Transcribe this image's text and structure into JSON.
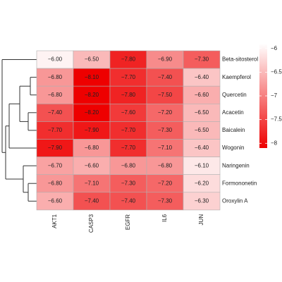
{
  "chart_data": {
    "type": "heatmap",
    "rows": [
      "Beta-sitosterol",
      "Kaempferol",
      "Quercetin",
      "Acacetin",
      "Baicalein",
      "Wogonin",
      "Naringenin",
      "Formononetin",
      "Oroxylin A"
    ],
    "columns": [
      "AKT1",
      "CASP3",
      "EGFR",
      "IL6",
      "JUN"
    ],
    "values": [
      [
        -6.0,
        -6.5,
        -7.8,
        -6.9,
        -7.3
      ],
      [
        -6.8,
        -8.1,
        -7.7,
        -7.4,
        -6.4
      ],
      [
        -6.8,
        -8.2,
        -7.8,
        -7.5,
        -6.6
      ],
      [
        -7.4,
        -8.2,
        -7.6,
        -7.2,
        -6.5
      ],
      [
        -7.7,
        -7.9,
        -7.7,
        -7.3,
        -6.5
      ],
      [
        -7.9,
        -6.8,
        -7.7,
        -7.1,
        -6.4
      ],
      [
        -6.7,
        -6.6,
        -6.8,
        -6.8,
        -6.1
      ],
      [
        -6.8,
        -7.1,
        -7.3,
        -7.2,
        -6.2
      ],
      [
        -6.6,
        -7.4,
        -7.4,
        -7.3,
        -6.3
      ]
    ],
    "value_labels": [
      [
        "−6.00",
        "−6.50",
        "−7.80",
        "−6.90",
        "−7.30"
      ],
      [
        "−6.80",
        "−8.10",
        "−7.70",
        "−7.40",
        "−6.40"
      ],
      [
        "−6.80",
        "−8.20",
        "−7.80",
        "−7.50",
        "−6.60"
      ],
      [
        "−7.40",
        "−8.20",
        "−7.60",
        "−7.20",
        "−6.50"
      ],
      [
        "−7.70",
        "−7.90",
        "−7.70",
        "−7.30",
        "−6.50"
      ],
      [
        "−7.90",
        "−6.80",
        "−7.70",
        "−7.10",
        "−6.40"
      ],
      [
        "−6.70",
        "−6.60",
        "−6.80",
        "−6.80",
        "−6.10"
      ],
      [
        "−6.80",
        "−7.10",
        "−7.30",
        "−7.20",
        "−6.20"
      ],
      [
        "−6.60",
        "−7.40",
        "−7.40",
        "−7.30",
        "−6.30"
      ]
    ],
    "clim": [
      -8.1,
      -5.9
    ],
    "cticks": [
      {
        "value": -6,
        "label": "−6"
      },
      {
        "value": -6.5,
        "label": "−6.5"
      },
      {
        "value": -7,
        "label": "−7"
      },
      {
        "value": -7.5,
        "label": "−7.5"
      },
      {
        "value": -8,
        "label": "−8"
      }
    ],
    "low_color": "#ee0000",
    "high_color": "#ffffff"
  }
}
